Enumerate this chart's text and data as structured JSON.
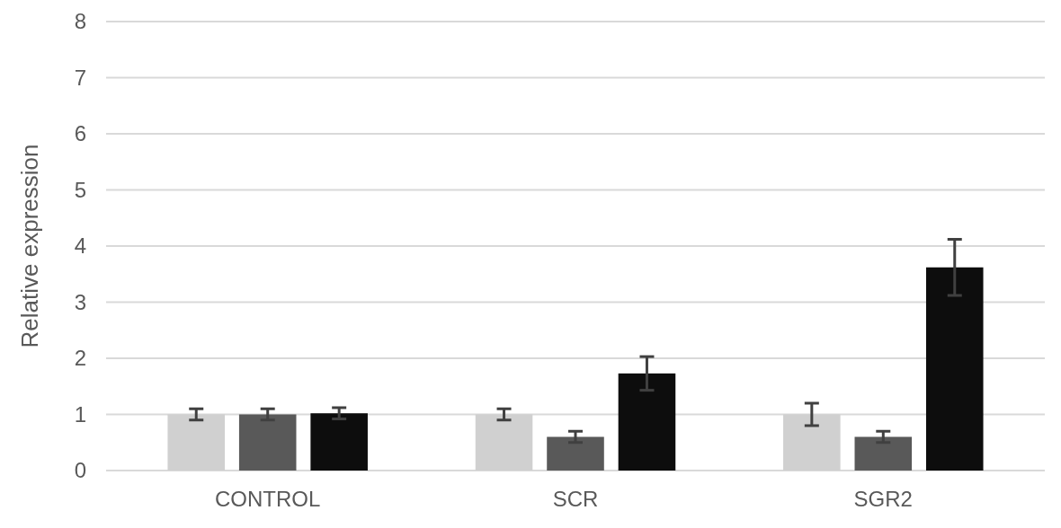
{
  "chart_data": {
    "type": "bar",
    "ylabel": "Relative expression",
    "categories": [
      "CONTROL",
      "SCR",
      "SGR2"
    ],
    "series": [
      {
        "color": "#d0d0d0",
        "values": [
          1.0,
          1.0,
          1.0
        ],
        "errors": [
          0.1,
          0.1,
          0.2
        ]
      },
      {
        "color": "#595959",
        "values": [
          1.0,
          0.6,
          0.6
        ],
        "errors": [
          0.1,
          0.1,
          0.1
        ]
      },
      {
        "color": "#0d0d0d",
        "values": [
          1.02,
          1.73,
          3.62
        ],
        "errors": [
          0.1,
          0.3,
          0.5
        ]
      }
    ],
    "ylim": [
      0,
      8
    ],
    "yticks": [
      0,
      1,
      2,
      3,
      4,
      5,
      6,
      7,
      8
    ],
    "grid": "y"
  }
}
